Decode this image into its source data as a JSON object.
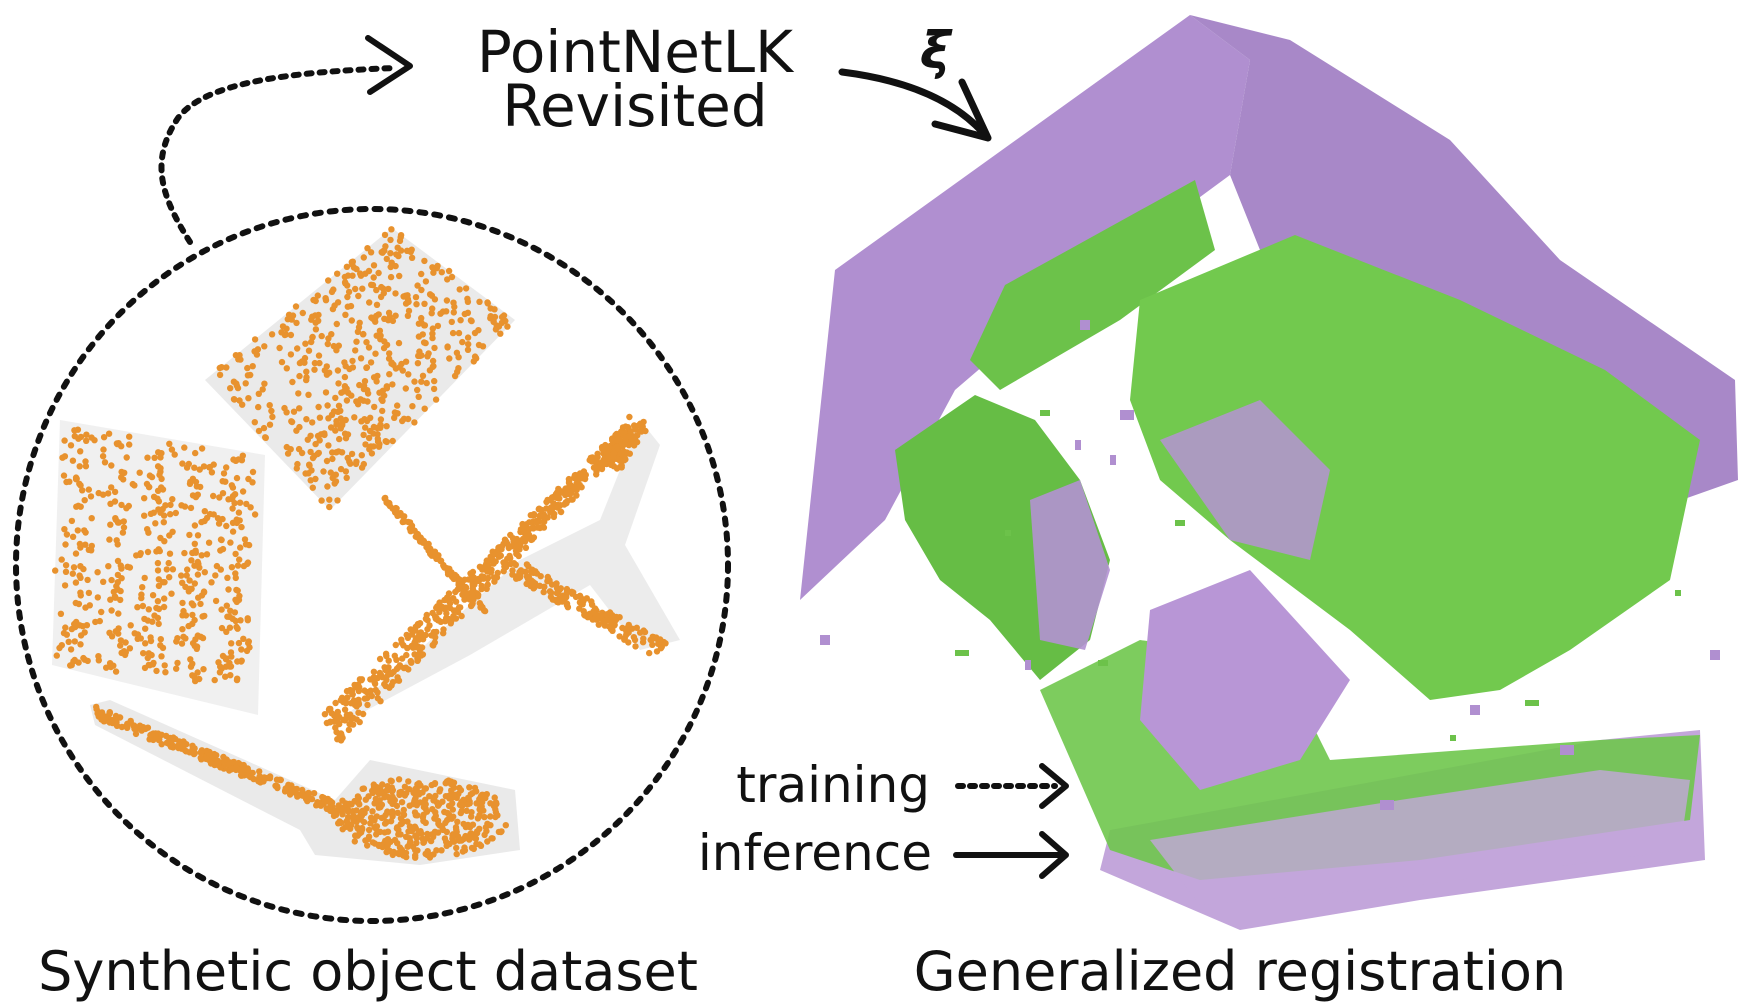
{
  "title_line1": "PointNetLK",
  "title_line2": "Revisited",
  "transform_symbol": "ξ",
  "left_caption": "Synthetic object dataset",
  "right_caption": "Generalized registration",
  "legend": {
    "training_label": "training",
    "inference_label": "inference"
  },
  "colors": {
    "points": "#e8922e",
    "mesh_shadow": "#d9d9d9",
    "source_cloud": "#b08fd0",
    "target_cloud": "#6cc24a",
    "line": "#111111"
  }
}
